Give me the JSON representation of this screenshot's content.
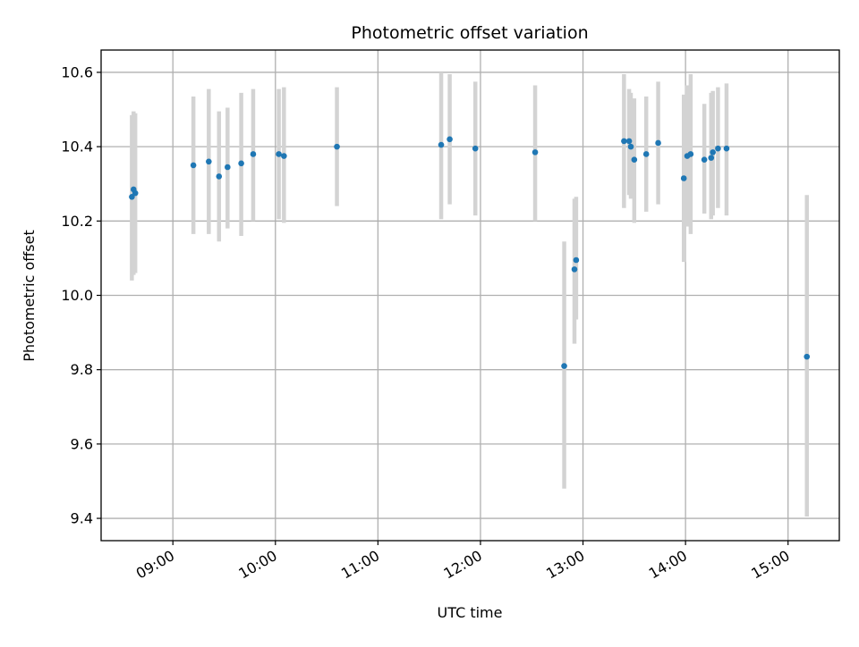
{
  "chart_data": {
    "type": "scatter",
    "title": "Photometric offset variation",
    "xlabel": "UTC time",
    "ylabel": "Photometric offset",
    "x_axis": {
      "scale": "time",
      "range": [
        "08:18",
        "15:30"
      ],
      "ticks": [
        "09:00",
        "10:00",
        "11:00",
        "12:00",
        "13:00",
        "14:00",
        "15:00"
      ],
      "tick_label_rotation": "30 degrees"
    },
    "y_axis": {
      "range": [
        9.34,
        10.66
      ],
      "ticks": [
        "9.4",
        "9.6",
        "9.8",
        "10.0",
        "10.2",
        "10.4",
        "10.6"
      ]
    },
    "grid": true,
    "legend": "none",
    "colors": {
      "point": "#1f77b4",
      "errorbar": "#d3d3d3",
      "grid": "#b0b0b0"
    },
    "points": [
      {
        "x": "08:36",
        "y": 10.265,
        "err_low": 10.04,
        "err_high": 10.485
      },
      {
        "x": "08:37",
        "y": 10.285,
        "err_low": 10.055,
        "err_high": 10.495
      },
      {
        "x": "08:38",
        "y": 10.275,
        "err_low": 10.06,
        "err_high": 10.49
      },
      {
        "x": "09:12",
        "y": 10.35,
        "err_low": 10.165,
        "err_high": 10.535
      },
      {
        "x": "09:21",
        "y": 10.36,
        "err_low": 10.165,
        "err_high": 10.555
      },
      {
        "x": "09:27",
        "y": 10.32,
        "err_low": 10.145,
        "err_high": 10.495
      },
      {
        "x": "09:32",
        "y": 10.345,
        "err_low": 10.18,
        "err_high": 10.505
      },
      {
        "x": "09:40",
        "y": 10.355,
        "err_low": 10.16,
        "err_high": 10.545
      },
      {
        "x": "09:47",
        "y": 10.38,
        "err_low": 10.2,
        "err_high": 10.555
      },
      {
        "x": "10:02",
        "y": 10.38,
        "err_low": 10.205,
        "err_high": 10.555
      },
      {
        "x": "10:05",
        "y": 10.375,
        "err_low": 10.195,
        "err_high": 10.56
      },
      {
        "x": "10:36",
        "y": 10.4,
        "err_low": 10.24,
        "err_high": 10.56
      },
      {
        "x": "11:37",
        "y": 10.405,
        "err_low": 10.205,
        "err_high": 10.6
      },
      {
        "x": "11:42",
        "y": 10.42,
        "err_low": 10.245,
        "err_high": 10.595
      },
      {
        "x": "11:57",
        "y": 10.395,
        "err_low": 10.215,
        "err_high": 10.575
      },
      {
        "x": "12:32",
        "y": 10.385,
        "err_low": 10.2,
        "err_high": 10.565
      },
      {
        "x": "12:49",
        "y": 9.81,
        "err_low": 9.48,
        "err_high": 10.145
      },
      {
        "x": "12:55",
        "y": 10.07,
        "err_low": 9.87,
        "err_high": 10.26
      },
      {
        "x": "12:56",
        "y": 10.095,
        "err_low": 9.935,
        "err_high": 10.265
      },
      {
        "x": "13:24",
        "y": 10.415,
        "err_low": 10.235,
        "err_high": 10.595
      },
      {
        "x": "13:27",
        "y": 10.415,
        "err_low": 10.27,
        "err_high": 10.555
      },
      {
        "x": "13:28",
        "y": 10.4,
        "err_low": 10.26,
        "err_high": 10.545
      },
      {
        "x": "13:30",
        "y": 10.365,
        "err_low": 10.195,
        "err_high": 10.53
      },
      {
        "x": "13:37",
        "y": 10.38,
        "err_low": 10.225,
        "err_high": 10.535
      },
      {
        "x": "13:44",
        "y": 10.41,
        "err_low": 10.245,
        "err_high": 10.575
      },
      {
        "x": "13:59",
        "y": 10.315,
        "err_low": 10.09,
        "err_high": 10.54
      },
      {
        "x": "14:01",
        "y": 10.375,
        "err_low": 10.185,
        "err_high": 10.565
      },
      {
        "x": "14:03",
        "y": 10.38,
        "err_low": 10.165,
        "err_high": 10.595
      },
      {
        "x": "14:11",
        "y": 10.365,
        "err_low": 10.22,
        "err_high": 10.515
      },
      {
        "x": "14:15",
        "y": 10.37,
        "err_low": 10.205,
        "err_high": 10.545
      },
      {
        "x": "14:16",
        "y": 10.385,
        "err_low": 10.215,
        "err_high": 10.55
      },
      {
        "x": "14:19",
        "y": 10.395,
        "err_low": 10.235,
        "err_high": 10.56
      },
      {
        "x": "14:24",
        "y": 10.395,
        "err_low": 10.215,
        "err_high": 10.57
      },
      {
        "x": "15:11",
        "y": 9.835,
        "err_low": 9.405,
        "err_high": 10.27
      }
    ]
  }
}
